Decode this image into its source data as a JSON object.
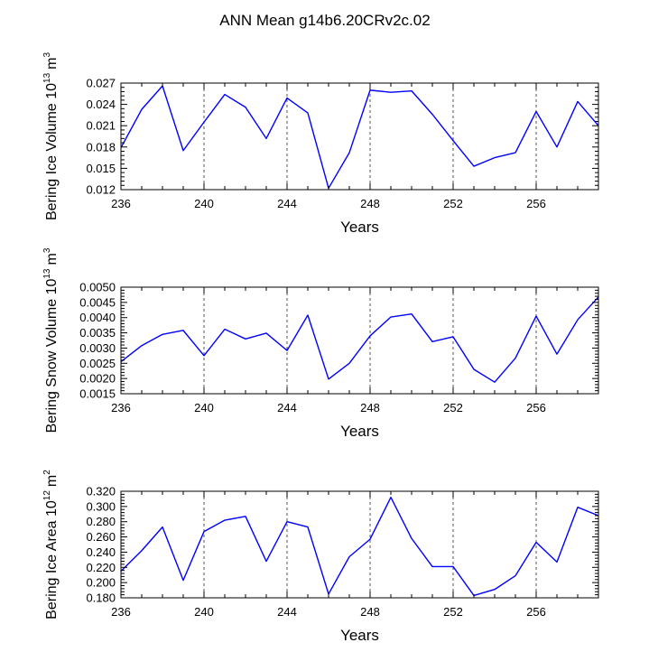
{
  "figure": {
    "title": "ANN Mean g14b6.20CRv2c.02"
  },
  "style": {
    "line_color": "#0000ff",
    "axis_color": "#000000",
    "grid_color": "#555555"
  },
  "chart_data": [
    {
      "type": "line",
      "title": "",
      "xlabel": "Years",
      "ylabel": "Bering Ice Volume 10",
      "ylabel_exp": "13",
      "ylabel_unit": "m",
      "ylabel_unit_exp": "3",
      "xlim": [
        236,
        259
      ],
      "ylim": [
        0.012,
        0.027
      ],
      "xticks": [
        236,
        240,
        244,
        248,
        252,
        256
      ],
      "yticks": [
        0.012,
        0.015,
        0.018,
        0.021,
        0.024,
        0.027
      ],
      "ytick_labels": [
        "0.012",
        "0.015",
        "0.018",
        "0.021",
        "0.024",
        "0.027"
      ],
      "grid_x": [
        240,
        244,
        248,
        252,
        256
      ],
      "series": [
        {
          "x": [
            236,
            237,
            238,
            239,
            240,
            241,
            242,
            243,
            244,
            245,
            246,
            247,
            248,
            249,
            250,
            251,
            252,
            253,
            254,
            255,
            256,
            257,
            258,
            259
          ],
          "values": [
            0.0179,
            0.0233,
            0.0266,
            0.0175,
            0.0215,
            0.0254,
            0.0236,
            0.0192,
            0.0249,
            0.0228,
            0.0122,
            0.0172,
            0.026,
            0.0257,
            0.0259,
            0.0226,
            0.0189,
            0.0153,
            0.0165,
            0.0172,
            0.023,
            0.018,
            0.0244,
            0.021
          ]
        }
      ]
    },
    {
      "type": "line",
      "title": "",
      "xlabel": "Years",
      "ylabel": "Bering Snow Volume 10",
      "ylabel_exp": "13",
      "ylabel_unit": "m",
      "ylabel_unit_exp": "3",
      "xlim": [
        236,
        259
      ],
      "ylim": [
        0.0015,
        0.005
      ],
      "xticks": [
        236,
        240,
        244,
        248,
        252,
        256
      ],
      "yticks": [
        0.0015,
        0.002,
        0.0025,
        0.003,
        0.0035,
        0.004,
        0.0045,
        0.005
      ],
      "ytick_labels": [
        "0.0015",
        "0.0020",
        "0.0025",
        "0.0030",
        "0.0035",
        "0.0040",
        "0.0045",
        "0.0050"
      ],
      "grid_x": [
        240,
        244,
        248,
        252,
        256
      ],
      "series": [
        {
          "x": [
            236,
            237,
            238,
            239,
            240,
            241,
            242,
            243,
            244,
            245,
            246,
            247,
            248,
            249,
            250,
            251,
            252,
            253,
            254,
            255,
            256,
            257,
            258,
            259
          ],
          "values": [
            0.00255,
            0.00308,
            0.00345,
            0.00358,
            0.00275,
            0.00362,
            0.0033,
            0.00349,
            0.00292,
            0.00408,
            0.00198,
            0.0025,
            0.0034,
            0.00402,
            0.00412,
            0.00321,
            0.00337,
            0.0023,
            0.00188,
            0.00267,
            0.00405,
            0.0028,
            0.00393,
            0.00468
          ]
        }
      ]
    },
    {
      "type": "line",
      "title": "",
      "xlabel": "Years",
      "ylabel": "Bering Ice Area 10",
      "ylabel_exp": "12",
      "ylabel_unit": "m",
      "ylabel_unit_exp": "2",
      "xlim": [
        236,
        259
      ],
      "ylim": [
        0.18,
        0.32
      ],
      "xticks": [
        236,
        240,
        244,
        248,
        252,
        256
      ],
      "yticks": [
        0.18,
        0.2,
        0.22,
        0.24,
        0.26,
        0.28,
        0.3,
        0.32
      ],
      "ytick_labels": [
        "0.180",
        "0.200",
        "0.220",
        "0.240",
        "0.260",
        "0.280",
        "0.300",
        "0.320"
      ],
      "grid_x": [
        240,
        244,
        248,
        252,
        256
      ],
      "series": [
        {
          "x": [
            236,
            237,
            238,
            239,
            240,
            241,
            242,
            243,
            244,
            245,
            246,
            247,
            248,
            249,
            250,
            251,
            252,
            253,
            254,
            255,
            256,
            257,
            258,
            259
          ],
          "values": [
            0.215,
            0.242,
            0.273,
            0.203,
            0.267,
            0.282,
            0.287,
            0.228,
            0.28,
            0.273,
            0.185,
            0.234,
            0.257,
            0.312,
            0.258,
            0.221,
            0.221,
            0.183,
            0.191,
            0.209,
            0.253,
            0.227,
            0.299,
            0.288
          ]
        }
      ]
    }
  ]
}
